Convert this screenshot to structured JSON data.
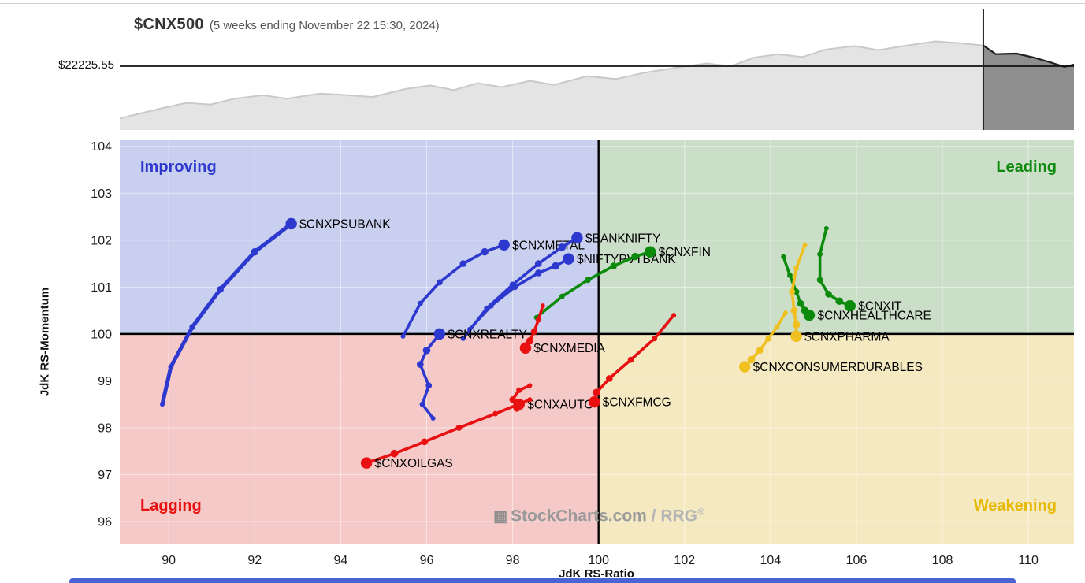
{
  "header": {
    "symbol": "$CNX500",
    "subtitle": "(5 weeks ending November 22 15:30, 2024)",
    "price_label": "$22225.55"
  },
  "watermark": {
    "brand": "StockCharts.com",
    "product": "/ RRG",
    "registered": "®",
    "icon_glyph": "▦"
  },
  "chart_data": {
    "type": "scatter",
    "title": "$CNX500 (5 weeks ending November 22 15:30, 2024)",
    "xlabel": "JdK RS-Ratio",
    "ylabel": "JdK RS-Momentum",
    "xlim": [
      88.86,
      111.06
    ],
    "ylim": [
      95.53,
      104.13
    ],
    "xticks": [
      90,
      92,
      94,
      96,
      98,
      100,
      102,
      104,
      106,
      108,
      110
    ],
    "yticks": [
      96,
      97,
      98,
      99,
      100,
      101,
      102,
      103,
      104
    ],
    "grid": true,
    "quadrants": {
      "improving": {
        "label": "Improving",
        "fill": "#c9cfef",
        "label_color": "#2d38cf"
      },
      "leading": {
        "label": "Leading",
        "fill": "#cbdfc8",
        "label_color": "#0b8a0b"
      },
      "lagging": {
        "label": "Lagging",
        "fill": "#f6c9c9",
        "label_color": "#e81010"
      },
      "weakening": {
        "label": "Weakening",
        "fill": "#f5e9c2",
        "label_color": "#e6b800"
      }
    },
    "series": [
      {
        "name": "$CNXPSUBANK",
        "color": "#2d38cf",
        "width": 5,
        "points": [
          [
            89.85,
            98.5
          ],
          [
            90.05,
            99.3
          ],
          [
            90.55,
            100.15
          ],
          [
            91.2,
            100.95
          ],
          [
            92.0,
            101.75
          ],
          [
            92.85,
            102.35
          ]
        ]
      },
      {
        "name": "$CNXMETAL",
        "color": "#2d38cf",
        "points": [
          [
            95.45,
            99.95
          ],
          [
            95.85,
            100.65
          ],
          [
            96.3,
            101.1
          ],
          [
            96.85,
            101.5
          ],
          [
            97.35,
            101.75
          ],
          [
            97.8,
            101.9
          ]
        ]
      },
      {
        "name": "$BANKNIFTY",
        "color": "#2d38cf",
        "points": [
          [
            96.85,
            99.9
          ],
          [
            97.4,
            100.55
          ],
          [
            98.0,
            101.05
          ],
          [
            98.6,
            101.5
          ],
          [
            99.15,
            101.85
          ],
          [
            99.5,
            102.05
          ]
        ]
      },
      {
        "name": "$NIFTYPVTBANK",
        "color": "#2d38cf",
        "points": [
          [
            97.0,
            100.1
          ],
          [
            97.5,
            100.6
          ],
          [
            98.05,
            101.0
          ],
          [
            98.6,
            101.3
          ],
          [
            99.0,
            101.45
          ],
          [
            99.3,
            101.6
          ]
        ]
      },
      {
        "name": "$CNXREALTY",
        "color": "#2d38cf",
        "points": [
          [
            96.15,
            98.2
          ],
          [
            95.9,
            98.5
          ],
          [
            96.05,
            98.9
          ],
          [
            95.85,
            99.35
          ],
          [
            96.0,
            99.65
          ],
          [
            96.3,
            100.0
          ]
        ]
      },
      {
        "name": "$CNXFIN",
        "color": "#0b8a0b",
        "points": [
          [
            98.55,
            100.35
          ],
          [
            99.15,
            100.8
          ],
          [
            99.75,
            101.15
          ],
          [
            100.35,
            101.45
          ],
          [
            100.85,
            101.65
          ],
          [
            101.2,
            101.75
          ]
        ]
      },
      {
        "name": "$CNXIT",
        "color": "#0b8a0b",
        "points": [
          [
            105.3,
            102.25
          ],
          [
            105.15,
            101.7
          ],
          [
            105.15,
            101.15
          ],
          [
            105.35,
            100.85
          ],
          [
            105.6,
            100.7
          ],
          [
            105.85,
            100.6
          ]
        ]
      },
      {
        "name": "$CNXHEALTHCARE",
        "color": "#0b8a0b",
        "points": [
          [
            104.3,
            101.65
          ],
          [
            104.45,
            101.25
          ],
          [
            104.6,
            100.9
          ],
          [
            104.7,
            100.65
          ],
          [
            104.8,
            100.5
          ],
          [
            104.9,
            100.4
          ]
        ]
      },
      {
        "name": "$CNXPHARMA",
        "color": "#f0c020",
        "points": [
          [
            104.8,
            101.9
          ],
          [
            104.6,
            101.4
          ],
          [
            104.5,
            100.9
          ],
          [
            104.55,
            100.5
          ],
          [
            104.6,
            100.2
          ],
          [
            104.6,
            99.95
          ]
        ]
      },
      {
        "name": "$CNXCONSUMERDURABLES",
        "color": "#f0c020",
        "points": [
          [
            104.35,
            100.45
          ],
          [
            104.15,
            100.15
          ],
          [
            103.95,
            99.9
          ],
          [
            103.75,
            99.65
          ],
          [
            103.55,
            99.45
          ],
          [
            103.4,
            99.3
          ]
        ]
      },
      {
        "name": "$CNXMEDIA",
        "color": "#e81010",
        "points": [
          [
            98.7,
            100.6
          ],
          [
            98.6,
            100.3
          ],
          [
            98.5,
            100.05
          ],
          [
            98.4,
            99.85
          ],
          [
            98.3,
            99.7
          ]
        ]
      },
      {
        "name": "$CNXAUTO",
        "color": "#e81010",
        "points": [
          [
            98.4,
            98.9
          ],
          [
            98.15,
            98.8
          ],
          [
            98.0,
            98.6
          ],
          [
            98.1,
            98.42
          ],
          [
            98.15,
            98.5
          ]
        ]
      },
      {
        "name": "$CNXFMCG",
        "color": "#e81010",
        "points": [
          [
            101.75,
            100.4
          ],
          [
            101.3,
            99.9
          ],
          [
            100.75,
            99.45
          ],
          [
            100.25,
            99.05
          ],
          [
            99.95,
            98.75
          ],
          [
            99.9,
            98.55
          ]
        ]
      },
      {
        "name": "$CNXOILGAS",
        "color": "#e81010",
        "points": [
          [
            98.4,
            98.6
          ],
          [
            97.6,
            98.3
          ],
          [
            96.75,
            98.0
          ],
          [
            95.95,
            97.7
          ],
          [
            95.25,
            97.45
          ],
          [
            94.6,
            97.25
          ]
        ]
      }
    ],
    "sparkline": {
      "price_line_label": "$22225.55",
      "price_line_level": 0.551,
      "highlight_start": 0.905,
      "area_fill": "#e4e4e4",
      "area_stroke": "#c9c9c9",
      "highlight_fill": "#8e8e8e",
      "highlight_stroke": "#1f1f1f",
      "points": [
        [
          0,
          0.1
        ],
        [
          0.02,
          0.14
        ],
        [
          0.045,
          0.19
        ],
        [
          0.07,
          0.235
        ],
        [
          0.095,
          0.22
        ],
        [
          0.12,
          0.27
        ],
        [
          0.15,
          0.3
        ],
        [
          0.175,
          0.27
        ],
        [
          0.21,
          0.315
        ],
        [
          0.24,
          0.3
        ],
        [
          0.265,
          0.285
        ],
        [
          0.3,
          0.355
        ],
        [
          0.325,
          0.385
        ],
        [
          0.35,
          0.345
        ],
        [
          0.375,
          0.405
        ],
        [
          0.4,
          0.37
        ],
        [
          0.43,
          0.425
        ],
        [
          0.455,
          0.39
        ],
        [
          0.49,
          0.465
        ],
        [
          0.52,
          0.44
        ],
        [
          0.55,
          0.495
        ],
        [
          0.585,
          0.54
        ],
        [
          0.615,
          0.575
        ],
        [
          0.64,
          0.55
        ],
        [
          0.665,
          0.625
        ],
        [
          0.69,
          0.655
        ],
        [
          0.715,
          0.63
        ],
        [
          0.74,
          0.695
        ],
        [
          0.77,
          0.725
        ],
        [
          0.795,
          0.69
        ],
        [
          0.825,
          0.73
        ],
        [
          0.855,
          0.765
        ],
        [
          0.88,
          0.75
        ],
        [
          0.905,
          0.73
        ],
        [
          0.918,
          0.655
        ],
        [
          0.94,
          0.66
        ],
        [
          0.958,
          0.625
        ],
        [
          0.975,
          0.585
        ],
        [
          0.99,
          0.545
        ],
        [
          1.0,
          0.565
        ]
      ]
    }
  }
}
